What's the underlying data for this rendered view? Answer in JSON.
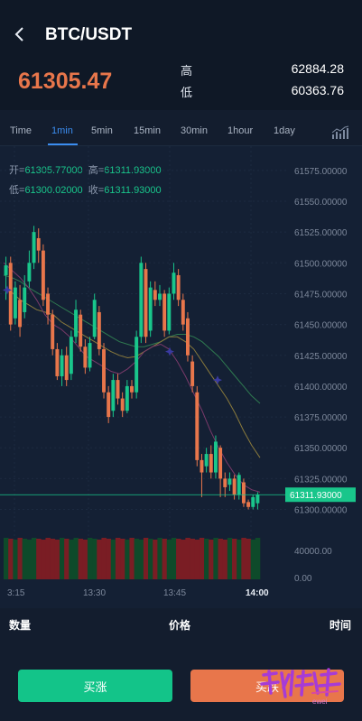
{
  "header": {
    "title": "BTC/USDT"
  },
  "price": {
    "last": "61305.47",
    "high_label": "高",
    "high_value": "62884.28",
    "low_label": "低",
    "low_value": "60363.76"
  },
  "tabs": [
    {
      "label": "Time",
      "active": false
    },
    {
      "label": "1min",
      "active": true
    },
    {
      "label": "5min",
      "active": false
    },
    {
      "label": "15min",
      "active": false
    },
    {
      "label": "30min",
      "active": false
    },
    {
      "label": "1hour",
      "active": false
    },
    {
      "label": "1day",
      "active": false
    }
  ],
  "ohlc": {
    "open_label": "开=",
    "open": "61305.77000",
    "high_label": "高=",
    "high": "61311.93000",
    "low_label": "低=",
    "low": "61300.02000",
    "close_label": "收=",
    "close": "61311.93000"
  },
  "chart_data": {
    "type": "candlestick",
    "y_ticks": [
      "61575.00000",
      "61550.00000",
      "61525.00000",
      "61500.00000",
      "61475.00000",
      "61450.00000",
      "61425.00000",
      "61400.00000",
      "61375.00000",
      "61350.00000",
      "61325.00000",
      "61300.00000"
    ],
    "ylim": [
      61296,
      61580
    ],
    "x_ticks": [
      "3:15",
      "13:30",
      "13:45",
      "14:00"
    ],
    "current_price_label": "61311.93000",
    "current_price": 61311.93,
    "volume_ticks": [
      "40000.00",
      "0.00"
    ],
    "candles": [
      {
        "o": 61490,
        "c": 61498,
        "h": 61505,
        "l": 61470
      },
      {
        "o": 61500,
        "c": 61450,
        "h": 61505,
        "l": 61445
      },
      {
        "o": 61455,
        "c": 61480,
        "h": 61485,
        "l": 61450
      },
      {
        "o": 61470,
        "c": 61448,
        "h": 61482,
        "l": 61440
      },
      {
        "o": 61460,
        "c": 61480,
        "h": 61490,
        "l": 61455
      },
      {
        "o": 61485,
        "c": 61500,
        "h": 61510,
        "l": 61480
      },
      {
        "o": 61500,
        "c": 61525,
        "h": 61530,
        "l": 61495
      },
      {
        "o": 61520,
        "c": 61510,
        "h": 61528,
        "l": 61500
      },
      {
        "o": 61510,
        "c": 61470,
        "h": 61515,
        "l": 61465
      },
      {
        "o": 61475,
        "c": 61458,
        "h": 61480,
        "l": 61450
      },
      {
        "o": 61458,
        "c": 61430,
        "h": 61462,
        "l": 61425
      },
      {
        "o": 61430,
        "c": 61408,
        "h": 61435,
        "l": 61405
      },
      {
        "o": 61408,
        "c": 61425,
        "h": 61430,
        "l": 61400
      },
      {
        "o": 61425,
        "c": 61405,
        "h": 61432,
        "l": 61400
      },
      {
        "o": 61410,
        "c": 61440,
        "h": 61445,
        "l": 61405
      },
      {
        "o": 61440,
        "c": 61462,
        "h": 61470,
        "l": 61435
      },
      {
        "o": 61458,
        "c": 61432,
        "h": 61462,
        "l": 61428
      },
      {
        "o": 61432,
        "c": 61415,
        "h": 61438,
        "l": 61410
      },
      {
        "o": 61415,
        "c": 61435,
        "h": 61440,
        "l": 61412
      },
      {
        "o": 61440,
        "c": 61470,
        "h": 61475,
        "l": 61438
      },
      {
        "o": 61460,
        "c": 61430,
        "h": 61465,
        "l": 61425
      },
      {
        "o": 61430,
        "c": 61395,
        "h": 61435,
        "l": 61390
      },
      {
        "o": 61395,
        "c": 61375,
        "h": 61400,
        "l": 61370
      },
      {
        "o": 61380,
        "c": 61405,
        "h": 61410,
        "l": 61375
      },
      {
        "o": 61405,
        "c": 61390,
        "h": 61410,
        "l": 61385
      },
      {
        "o": 61390,
        "c": 61380,
        "h": 61395,
        "l": 61375
      },
      {
        "o": 61380,
        "c": 61400,
        "h": 61405,
        "l": 61378
      },
      {
        "o": 61400,
        "c": 61395,
        "h": 61405,
        "l": 61390
      },
      {
        "o": 61395,
        "c": 61440,
        "h": 61445,
        "l": 61390
      },
      {
        "o": 61440,
        "c": 61500,
        "h": 61505,
        "l": 61435
      },
      {
        "o": 61495,
        "c": 61440,
        "h": 61500,
        "l": 61435
      },
      {
        "o": 61445,
        "c": 61480,
        "h": 61485,
        "l": 61440
      },
      {
        "o": 61478,
        "c": 61470,
        "h": 61485,
        "l": 61465
      },
      {
        "o": 61470,
        "c": 61475,
        "h": 61482,
        "l": 61465
      },
      {
        "o": 61475,
        "c": 61445,
        "h": 61478,
        "l": 61440
      },
      {
        "o": 61445,
        "c": 61475,
        "h": 61480,
        "l": 61442
      },
      {
        "o": 61475,
        "c": 61492,
        "h": 61500,
        "l": 61470
      },
      {
        "o": 61490,
        "c": 61470,
        "h": 61495,
        "l": 61465
      },
      {
        "o": 61470,
        "c": 61450,
        "h": 61475,
        "l": 61445
      },
      {
        "o": 61455,
        "c": 61425,
        "h": 61460,
        "l": 61420
      },
      {
        "o": 61420,
        "c": 61400,
        "h": 61425,
        "l": 61395
      },
      {
        "o": 61395,
        "c": 61340,
        "h": 61400,
        "l": 61335
      },
      {
        "o": 61340,
        "c": 61330,
        "h": 61345,
        "l": 61310
      },
      {
        "o": 61335,
        "c": 61345,
        "h": 61350,
        "l": 61330
      },
      {
        "o": 61345,
        "c": 61330,
        "h": 61352,
        "l": 61325
      },
      {
        "o": 61330,
        "c": 61355,
        "h": 61360,
        "l": 61325
      },
      {
        "o": 61350,
        "c": 61325,
        "h": 61352,
        "l": 61310
      },
      {
        "o": 61325,
        "c": 61318,
        "h": 61330,
        "l": 61310
      },
      {
        "o": 61320,
        "c": 61325,
        "h": 61330,
        "l": 61315
      },
      {
        "o": 61325,
        "c": 61312,
        "h": 61328,
        "l": 61308
      },
      {
        "o": 61312,
        "c": 61328,
        "h": 61330,
        "l": 61308
      },
      {
        "o": 61322,
        "c": 61305,
        "h": 61325,
        "l": 61302
      },
      {
        "o": 61306,
        "c": 61302,
        "h": 61308,
        "l": 61300
      },
      {
        "o": 61302,
        "c": 61310,
        "h": 61312,
        "l": 61300
      },
      {
        "o": 61305,
        "c": 61312,
        "h": 61314,
        "l": 61300
      }
    ],
    "ma_yellow": [
      61478,
      61476,
      61470,
      61466,
      61462,
      61460,
      61458,
      61452,
      61448,
      61444,
      61440,
      61436,
      61432,
      61428,
      61425,
      61423,
      61424,
      61428,
      61432,
      61436,
      61440,
      61440,
      61436,
      61430,
      61420,
      61410,
      61400,
      61390,
      61378,
      61364,
      61352,
      61342
    ],
    "ma_green": [
      61490,
      61488,
      61485,
      61480,
      61476,
      61472,
      61468,
      61464,
      61460,
      61456,
      61452,
      61448,
      61444,
      61440,
      61436,
      61434,
      61432,
      61432,
      61434,
      61436,
      61440,
      61442,
      61442,
      61440,
      61436,
      61430,
      61424,
      61416,
      61408,
      61400,
      61392,
      61386
    ],
    "ma_purple": [
      61500,
      61494,
      61488,
      61480,
      61470,
      61458,
      61450,
      61446,
      61440,
      61432,
      61424,
      61420,
      61416,
      61412,
      61410,
      61414,
      61420,
      61428,
      61432,
      61434,
      61430,
      61420,
      61408,
      61394,
      61380,
      61364,
      61350,
      61338,
      61328,
      61320,
      61316,
      61314
    ],
    "colors": {
      "up": "#19c68b",
      "down": "#e8764b",
      "ma_yellow": "#8a7a3c",
      "ma_green": "#2f7a50",
      "ma_purple": "#7a3a6a",
      "price_tag": "#19c68b"
    }
  },
  "table": {
    "col_qty": "数量",
    "col_price": "价格",
    "col_time": "时间"
  },
  "actions": {
    "buy": "买涨",
    "sell": "买跌"
  },
  "watermark": {
    "text": "ewei"
  },
  "icons": {
    "back": "chevron-left-icon",
    "chart_type": "bar-chart-icon"
  }
}
